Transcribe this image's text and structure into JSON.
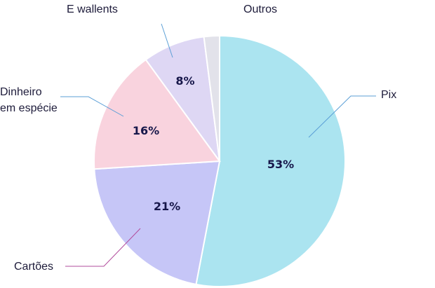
{
  "chart_data": {
    "type": "pie",
    "slices": [
      {
        "label": "Pix",
        "value": 53,
        "display": "53%",
        "color": "#ABE4F0",
        "line": "#5b9fd6"
      },
      {
        "label": "Cartões",
        "value": 21,
        "display": "21%",
        "color": "#C6C6F7",
        "line": "#b24c9c"
      },
      {
        "label": "Dinheiro em espécie",
        "value": 16,
        "display": "16%",
        "color": "#F9D3DE",
        "line": "#5b9fd6"
      },
      {
        "label": "E wallents",
        "value": 8,
        "display": "8%",
        "color": "#DED7F4",
        "line": "#5b9fd6"
      },
      {
        "label": "Outros",
        "value": 2,
        "display": "",
        "color": "#E2E2EA",
        "line": ""
      }
    ],
    "legend": "none"
  },
  "labels": {
    "pix": "Pix",
    "cartoes": "Cartões",
    "dinheiro_1": "Dinheiro",
    "dinheiro_2": "em espécie",
    "ewallets": "E wallents",
    "outros": "Outros"
  }
}
